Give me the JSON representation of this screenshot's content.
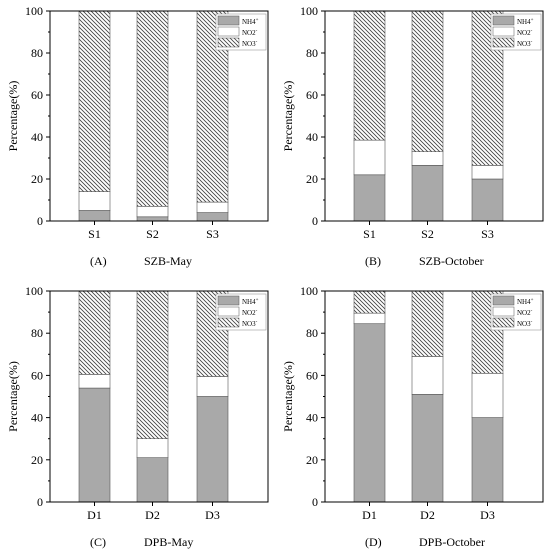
{
  "colors": {
    "nh4": "#a9a9a9",
    "no2": "#ffffff",
    "no3_hatch": "#404040",
    "axis": "#000000"
  },
  "chart_data": [
    {
      "type": "bar",
      "stacked": true,
      "panel_label": "(A)",
      "panel_title": "SZB-May",
      "ylabel": "Percentage(%)",
      "ylim": [
        0,
        100
      ],
      "yticks": [
        "0",
        "20",
        "40",
        "60",
        "80",
        "100"
      ],
      "categories": [
        "S1",
        "S2",
        "S3"
      ],
      "legend_position": "top-right",
      "series": [
        {
          "name": "NH4+",
          "legend_text": "NH4",
          "legend_sup": "+",
          "values": [
            5,
            2,
            4
          ]
        },
        {
          "name": "NO2-",
          "legend_text": "NO2",
          "legend_sup": "-",
          "values": [
            9,
            5,
            5
          ]
        },
        {
          "name": "NO3-",
          "legend_text": "NO3",
          "legend_sup": "-",
          "values": [
            86,
            93,
            91
          ]
        }
      ]
    },
    {
      "type": "bar",
      "stacked": true,
      "panel_label": "(B)",
      "panel_title": "SZB-October",
      "ylabel": "Percentage(%)",
      "ylim": [
        0,
        100
      ],
      "yticks": [
        "0",
        "20",
        "40",
        "60",
        "80",
        "100"
      ],
      "categories": [
        "S1",
        "S2",
        "S3"
      ],
      "legend_position": "top-right",
      "series": [
        {
          "name": "NH4+",
          "legend_text": "NH4",
          "legend_sup": "+",
          "values": [
            22,
            26.5,
            20
          ]
        },
        {
          "name": "NO2-",
          "legend_text": "NO2",
          "legend_sup": "-",
          "values": [
            16.5,
            6.5,
            6.5
          ]
        },
        {
          "name": "NO3-",
          "legend_text": "NO3",
          "legend_sup": "-",
          "values": [
            61.5,
            67,
            73.5
          ]
        }
      ]
    },
    {
      "type": "bar",
      "stacked": true,
      "panel_label": "(C)",
      "panel_title": "DPB-May",
      "ylabel": "Percentage(%)",
      "ylim": [
        0,
        100
      ],
      "yticks": [
        "0",
        "20",
        "40",
        "60",
        "80",
        "100"
      ],
      "categories": [
        "D1",
        "D2",
        "D3"
      ],
      "legend_position": "top-right",
      "series": [
        {
          "name": "NH4+",
          "legend_text": "NH4",
          "legend_sup": "+",
          "values": [
            54,
            21,
            50
          ]
        },
        {
          "name": "NO2-",
          "legend_text": "NO2",
          "legend_sup": "-",
          "values": [
            6.5,
            9,
            9.5
          ]
        },
        {
          "name": "NO3-",
          "legend_text": "NO3",
          "legend_sup": "-",
          "values": [
            39.5,
            70,
            40.5
          ]
        }
      ]
    },
    {
      "type": "bar",
      "stacked": true,
      "panel_label": "(D)",
      "panel_title": "DPB-October",
      "ylabel": "Percentage(%)",
      "ylim": [
        0,
        100
      ],
      "yticks": [
        "0",
        "20",
        "40",
        "60",
        "80",
        "100"
      ],
      "categories": [
        "D1",
        "D2",
        "D3"
      ],
      "legend_position": "top-right",
      "series": [
        {
          "name": "NH4+",
          "legend_text": "NH4",
          "legend_sup": "+",
          "values": [
            84.5,
            51,
            40
          ]
        },
        {
          "name": "NO2-",
          "legend_text": "NO2",
          "legend_sup": "-",
          "values": [
            5,
            18,
            21
          ]
        },
        {
          "name": "NO3-",
          "legend_text": "NO3",
          "legend_sup": "-",
          "values": [
            10.5,
            31,
            39
          ]
        }
      ]
    }
  ]
}
